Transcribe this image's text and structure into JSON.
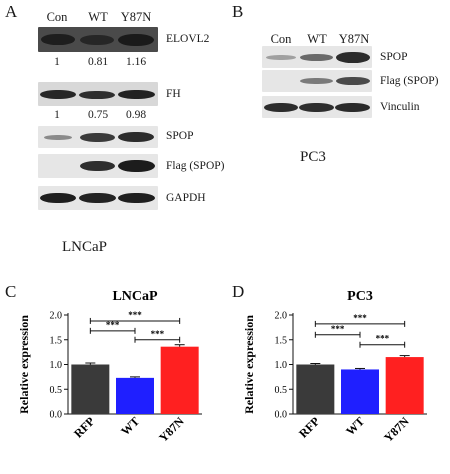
{
  "panels": {
    "A": {
      "letter": "A",
      "lanes": [
        "Con",
        "WT",
        "Y87N"
      ],
      "blots": [
        "ELOVL2",
        "FH",
        "SPOP",
        "Flag (SPOP)",
        "GAPDH"
      ],
      "quant_elovl2": [
        "1",
        "0.81",
        "1.16"
      ],
      "quant_fh": [
        "1",
        "0.75",
        "0.98"
      ],
      "cell_line": "LNCaP"
    },
    "B": {
      "letter": "B",
      "lanes": [
        "Con",
        "WT",
        "Y87N"
      ],
      "blots": [
        "SPOP",
        "Flag (SPOP)",
        "Vinculin"
      ],
      "cell_line": "PC3"
    },
    "C": {
      "letter": "C"
    },
    "D": {
      "letter": "D"
    }
  },
  "chart_data": [
    {
      "type": "bar",
      "title": "LNCaP",
      "ylabel": "Relative expression",
      "categories": [
        "RFP",
        "WT",
        "Y87N"
      ],
      "values": [
        1.0,
        0.73,
        1.36
      ],
      "errors": [
        0.03,
        0.02,
        0.04
      ],
      "colors": [
        "#3a3a3a",
        "#1f1fff",
        "#ff2020"
      ],
      "ylim": [
        0,
        2.0
      ],
      "yticks": [
        "0.0",
        "0.5",
        "1.0",
        "1.5",
        "2.0"
      ],
      "significance": [
        {
          "from": 0,
          "to": 1,
          "label": "***",
          "level": 1.68
        },
        {
          "from": 1,
          "to": 2,
          "label": "***",
          "level": 1.5
        },
        {
          "from": 0,
          "to": 2,
          "label": "***",
          "level": 1.88
        }
      ]
    },
    {
      "type": "bar",
      "title": "PC3",
      "ylabel": "Relative expression",
      "categories": [
        "RFP",
        "WT",
        "Y87N"
      ],
      "values": [
        1.0,
        0.9,
        1.15
      ],
      "errors": [
        0.02,
        0.02,
        0.03
      ],
      "colors": [
        "#3a3a3a",
        "#1f1fff",
        "#ff2020"
      ],
      "ylim": [
        0,
        2.0
      ],
      "yticks": [
        "0.0",
        "0.5",
        "1.0",
        "1.5",
        "2.0"
      ],
      "significance": [
        {
          "from": 0,
          "to": 1,
          "label": "***",
          "level": 1.6
        },
        {
          "from": 1,
          "to": 2,
          "label": "***",
          "level": 1.4
        },
        {
          "from": 0,
          "to": 2,
          "label": "***",
          "level": 1.82
        }
      ]
    }
  ]
}
